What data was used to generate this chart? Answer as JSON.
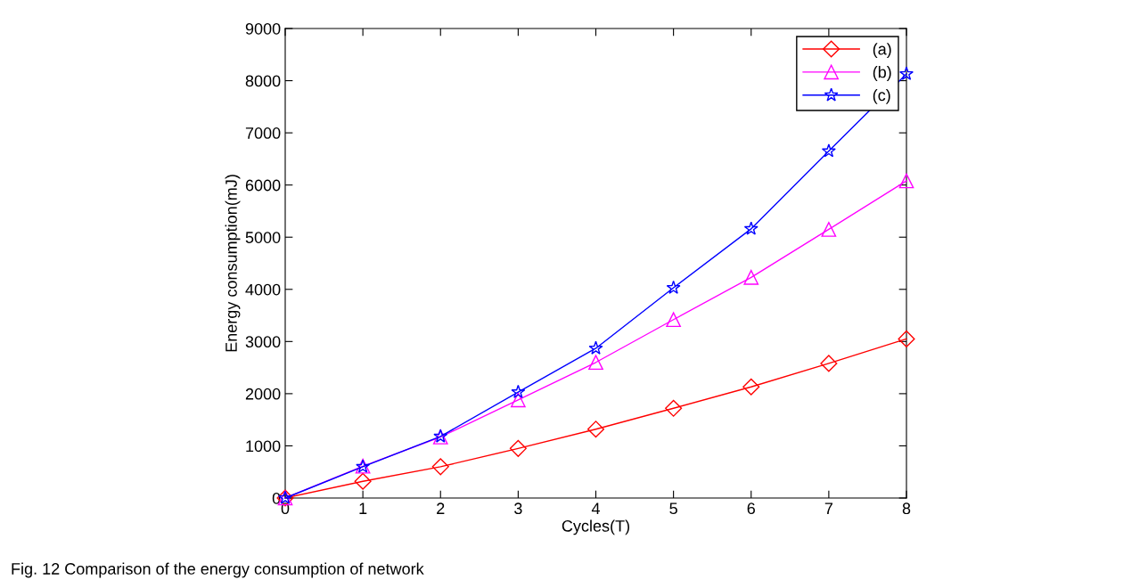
{
  "chart_data": {
    "type": "line",
    "xlabel": "Cycles(T)",
    "ylabel": "Energy consumption(mJ)",
    "x": [
      0,
      1,
      2,
      3,
      4,
      5,
      6,
      7,
      8
    ],
    "series": [
      {
        "name": "(a)",
        "color": "#ff0000",
        "marker": "diamond",
        "values": [
          0,
          320,
          600,
          950,
          1320,
          1720,
          2130,
          2580,
          3050
        ]
      },
      {
        "name": "(b)",
        "color": "#ff00ff",
        "marker": "triangle",
        "values": [
          0,
          610,
          1170,
          1880,
          2600,
          3420,
          4230,
          5150,
          6080
        ]
      },
      {
        "name": "(c)",
        "color": "#0000ff",
        "marker": "star",
        "values": [
          0,
          600,
          1180,
          2030,
          2870,
          4030,
          5160,
          6650,
          8130
        ]
      }
    ],
    "xlim": [
      0,
      8
    ],
    "xticks": [
      0,
      1,
      2,
      3,
      4,
      5,
      6,
      7,
      8
    ],
    "ylim": [
      0,
      9000
    ],
    "yticks": [
      0,
      1000,
      2000,
      3000,
      4000,
      5000,
      6000,
      7000,
      8000,
      9000
    ],
    "grid": false,
    "legend": "top right",
    "line_style": "solid",
    "annotations": [
      "Fig. 12 Comparison of the energy consumption of network"
    ]
  }
}
